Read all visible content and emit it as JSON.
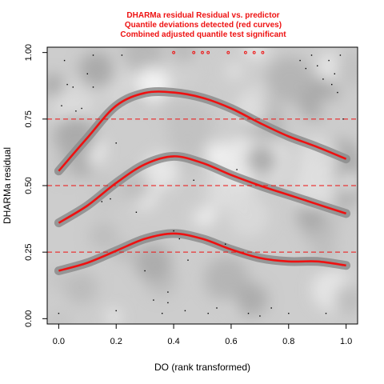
{
  "chart_data": {
    "type": "scatter",
    "title": [
      "DHARMa residual Residual vs. predictor",
      "Quantile deviations detected (red curves)",
      "Combined adjusted quantile test significant"
    ],
    "xlabel": "DO (rank transformed)",
    "ylabel": "DHARMa residual",
    "xlim": [
      -0.04,
      1.04
    ],
    "ylim": [
      -0.02,
      1.02
    ],
    "x_ticks": [
      0.0,
      0.2,
      0.4,
      0.6,
      0.8,
      1.0
    ],
    "x_tick_labels": [
      "0.0",
      "0.2",
      "0.4",
      "0.6",
      "0.8",
      "1.0"
    ],
    "y_ticks": [
      0.0,
      0.25,
      0.5,
      0.75,
      1.0
    ],
    "y_tick_labels": [
      "0.00",
      "0.25",
      "0.50",
      "0.75",
      "1.00"
    ],
    "reference_lines": [
      0.25,
      0.5,
      0.75
    ],
    "colors": {
      "title": "#ee1111",
      "curve": "#ee1111",
      "reference_line": "#ee1111",
      "band": "#8c8c8c",
      "points": "#000000",
      "outliers": "#ee1111"
    },
    "series": [
      {
        "quantile": 0.25,
        "x": [
          0.0,
          0.1,
          0.2,
          0.3,
          0.4,
          0.5,
          0.6,
          0.7,
          0.8,
          0.9,
          1.0
        ],
        "y": [
          0.18,
          0.21,
          0.255,
          0.3,
          0.32,
          0.3,
          0.26,
          0.228,
          0.215,
          0.215,
          0.2
        ]
      },
      {
        "quantile": 0.5,
        "x": [
          0.0,
          0.1,
          0.2,
          0.3,
          0.4,
          0.5,
          0.6,
          0.7,
          0.8,
          0.9,
          1.0
        ],
        "y": [
          0.36,
          0.425,
          0.51,
          0.58,
          0.61,
          0.585,
          0.54,
          0.5,
          0.465,
          0.43,
          0.395
        ]
      },
      {
        "quantile": 0.75,
        "x": [
          0.0,
          0.1,
          0.2,
          0.3,
          0.4,
          0.5,
          0.6,
          0.7,
          0.8,
          0.9,
          1.0
        ],
        "y": [
          0.555,
          0.68,
          0.8,
          0.848,
          0.85,
          0.83,
          0.79,
          0.735,
          0.685,
          0.645,
          0.6
        ]
      }
    ],
    "points": [
      [
        0.01,
        0.8
      ],
      [
        0.02,
        0.97
      ],
      [
        0.03,
        0.88
      ],
      [
        0.05,
        0.87
      ],
      [
        0.06,
        0.78
      ],
      [
        0.08,
        0.79
      ],
      [
        0.12,
        0.87
      ],
      [
        0.12,
        0.99
      ],
      [
        0.15,
        0.44
      ],
      [
        0.2,
        0.66
      ],
      [
        0.22,
        0.99
      ],
      [
        0.3,
        0.18
      ],
      [
        0.33,
        0.07
      ],
      [
        0.36,
        0.02
      ],
      [
        0.38,
        0.1
      ],
      [
        0.38,
        0.06
      ],
      [
        0.4,
        0.33
      ],
      [
        0.42,
        0.3
      ],
      [
        0.44,
        0.03
      ],
      [
        0.45,
        0.22
      ],
      [
        0.47,
        0.52
      ],
      [
        0.52,
        0.02
      ],
      [
        0.55,
        0.04
      ],
      [
        0.58,
        0.28
      ],
      [
        0.62,
        0.56
      ],
      [
        0.66,
        0.02
      ],
      [
        0.7,
        0.01
      ],
      [
        0.74,
        0.04
      ],
      [
        0.8,
        0.02
      ],
      [
        0.84,
        0.97
      ],
      [
        0.86,
        0.94
      ],
      [
        0.88,
        0.99
      ],
      [
        0.9,
        0.95
      ],
      [
        0.92,
        0.9
      ],
      [
        0.94,
        0.97
      ],
      [
        0.95,
        0.88
      ],
      [
        0.96,
        0.92
      ],
      [
        0.97,
        0.85
      ],
      [
        0.98,
        0.99
      ],
      [
        0.99,
        0.75
      ],
      [
        0.0,
        0.02
      ],
      [
        0.18,
        0.45
      ],
      [
        0.27,
        0.4
      ],
      [
        0.93,
        0.02
      ],
      [
        0.2,
        0.03
      ],
      [
        0.1,
        0.92
      ]
    ],
    "outlier_points": [
      [
        0.4,
        1.0
      ],
      [
        0.47,
        1.0
      ],
      [
        0.5,
        1.0
      ],
      [
        0.52,
        1.0
      ],
      [
        0.59,
        1.0
      ],
      [
        0.65,
        1.0
      ],
      [
        0.68,
        1.0
      ],
      [
        0.71,
        1.0
      ]
    ]
  }
}
